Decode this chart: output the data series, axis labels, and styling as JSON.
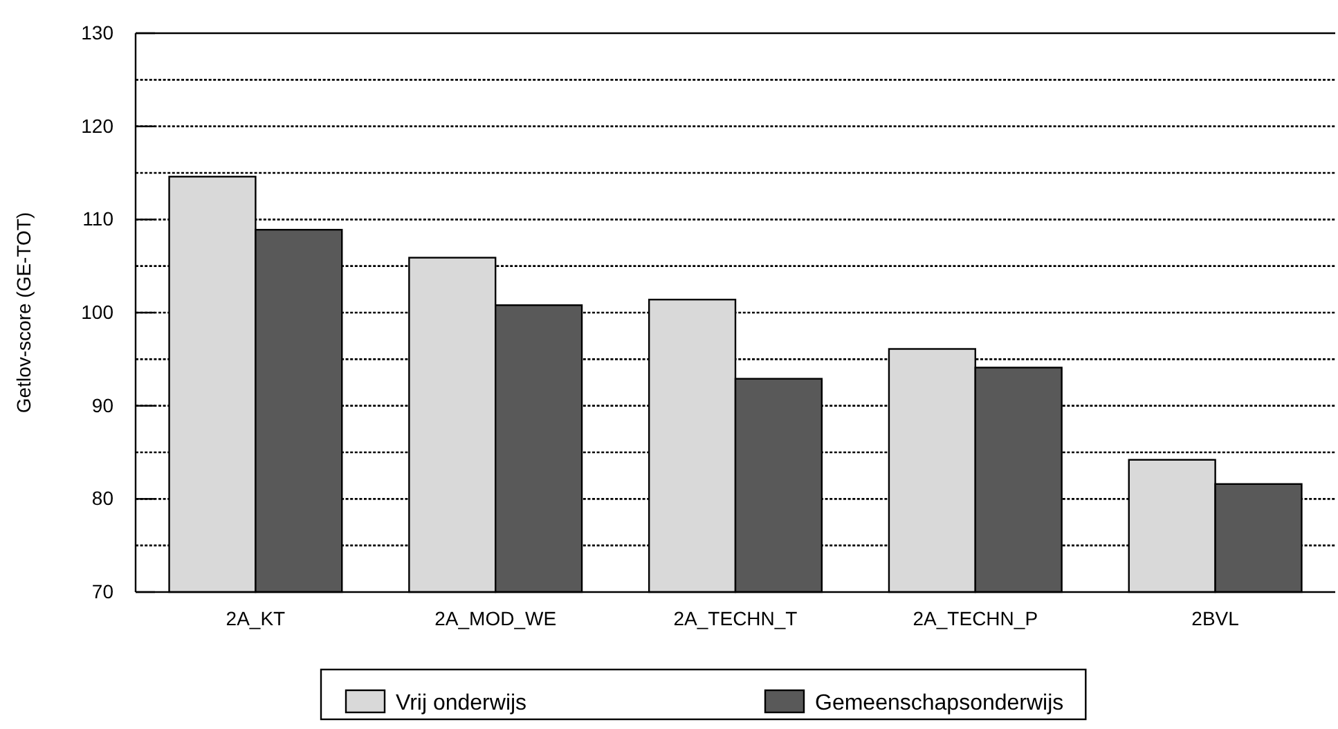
{
  "chart_data": {
    "type": "bar",
    "ylabel": "Getlov-score (GE-TOT)",
    "categories": [
      "2A_KT",
      "2A_MOD_WE",
      "2A_TECHN_T",
      "2A_TECHN_P",
      "2BVL"
    ],
    "series": [
      {
        "name": "Vrij onderwijs",
        "color": "#d9d9d9",
        "values": [
          114.6,
          105.9,
          101.4,
          96.1,
          84.2
        ]
      },
      {
        "name": "Gemeenschapsonderwijs",
        "color": "#595959",
        "values": [
          108.9,
          100.8,
          92.9,
          94.1,
          81.6
        ]
      }
    ],
    "ylim": [
      70,
      130
    ],
    "yticks": [
      70,
      {
        "value": 75,
        "label": null
      },
      80,
      {
        "value": 85,
        "label": null
      },
      90,
      {
        "value": 95,
        "label": null
      },
      100,
      {
        "value": 105,
        "label": null
      },
      110,
      {
        "value": 115,
        "label": null
      },
      120,
      {
        "value": 125,
        "label": null
      },
      130
    ],
    "grid": "y",
    "legend": "bottom"
  }
}
